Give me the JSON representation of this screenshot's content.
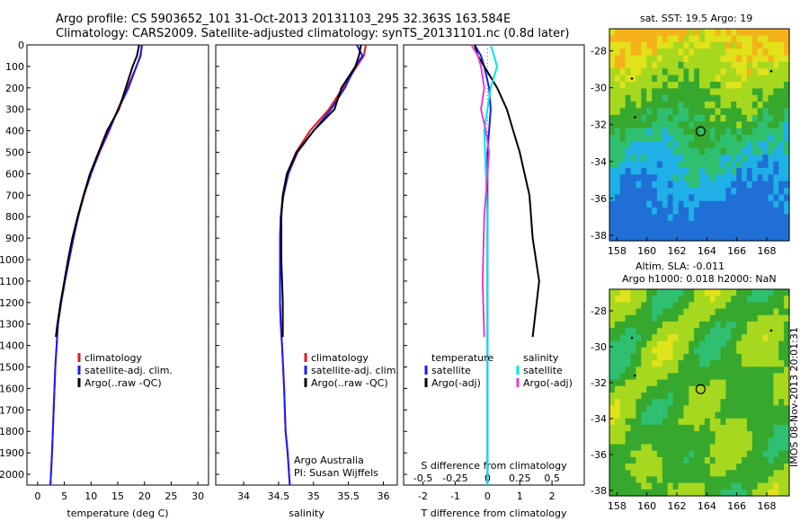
{
  "header": {
    "line1": "Argo profile: CS 5903652_101 31-Oct-2013 20131103_295 32.363S 163.584E",
    "line2": "Climatology: CARS2009. Satellite-adjusted climatology: synTS_20131101.nc (0.8d later)"
  },
  "map_top": {
    "title": "sat. SST: 19.5 Argo: 19"
  },
  "map_bottom": {
    "title_line1": "Altim. SLA: -0.011",
    "title_line2": "Argo h1000: 0.018 h2000: NaN"
  },
  "credits": {
    "vertical": "IMOS 08-Nov-2013 20:01:31",
    "institution": "Argo Australia",
    "pi": "PI: Susan Wijffels"
  },
  "colors": {
    "climatology": "#e41a1c",
    "satellite": "#1a1aff",
    "argo": "#000000",
    "s_satellite": "#00e5e5",
    "s_argo": "#e040d0"
  },
  "chart_data": [
    {
      "type": "line",
      "xlabel": "temperature (deg C)",
      "ylabel": "",
      "xlim": [
        -2,
        32
      ],
      "ylim": [
        2050,
        0
      ],
      "xticks": [
        "0",
        "5",
        "10",
        "15",
        "20",
        "25",
        "30"
      ],
      "yticks": [
        "0",
        "100",
        "200",
        "300",
        "400",
        "500",
        "600",
        "700",
        "800",
        "900",
        "1000",
        "1100",
        "1200",
        "1300",
        "1400",
        "1500",
        "1600",
        "1700",
        "1800",
        "1900",
        "2000"
      ],
      "legend": [
        "climatology",
        "satellite-adj. clim.",
        "Argo(..raw -QC)"
      ],
      "legend_position": "lower-center",
      "series": [
        {
          "name": "climatology",
          "x": [
            19.6,
            19.2,
            18.5,
            16.8,
            15,
            13.4,
            11.6,
            10,
            8.7,
            7.6,
            6.7,
            5.9,
            5.1,
            4.4,
            3.8,
            3.3,
            3.0,
            2.7,
            2.5,
            2.4
          ],
          "y": [
            0,
            50,
            100,
            200,
            300,
            400,
            500,
            600,
            700,
            800,
            900,
            1000,
            1100,
            1200,
            1300,
            1500,
            1700,
            1900,
            2000,
            2050
          ]
        },
        {
          "name": "satellite-adj. clim.",
          "x": [
            19.5,
            19.3,
            18.5,
            17,
            15.1,
            13.3,
            11.5,
            10,
            8.6,
            7.6,
            6.7,
            5.9,
            5.1,
            4.4,
            3.8,
            3.3,
            3.0,
            2.7,
            2.5,
            2.4
          ],
          "y": [
            0,
            50,
            100,
            200,
            300,
            400,
            500,
            600,
            700,
            800,
            900,
            1000,
            1100,
            1200,
            1300,
            1500,
            1700,
            1900,
            2000,
            2050
          ]
        },
        {
          "name": "Argo(..raw -QC)",
          "x": [
            19,
            18.6,
            17.8,
            16.5,
            15.2,
            13,
            11.4,
            9.8,
            8.6,
            7.5,
            6.5,
            5.7,
            5.0,
            4.3,
            3.7,
            3.4
          ],
          "y": [
            0,
            50,
            100,
            200,
            300,
            400,
            500,
            600,
            700,
            800,
            900,
            1000,
            1100,
            1200,
            1300,
            1360
          ]
        }
      ]
    },
    {
      "type": "line",
      "xlabel": "salinity",
      "xlim": [
        33.6,
        36.2
      ],
      "ylim": [
        2050,
        0
      ],
      "xticks": [
        "34",
        "34.5",
        "35",
        "35.5",
        "36"
      ],
      "legend": [
        "climatology",
        "satellite-adj. clim.",
        "Argo(..raw -QC)"
      ],
      "legend_position": "lower-right",
      "series": [
        {
          "name": "climatology",
          "x": [
            35.75,
            35.72,
            35.62,
            35.42,
            35.22,
            34.95,
            34.75,
            34.62,
            34.56,
            34.53,
            34.52,
            34.52,
            34.52,
            34.52,
            34.53,
            34.55,
            34.58,
            34.6,
            34.63,
            34.65,
            34.66
          ],
          "y": [
            0,
            50,
            100,
            200,
            300,
            400,
            500,
            600,
            700,
            800,
            900,
            1000,
            1100,
            1200,
            1300,
            1400,
            1600,
            1800,
            1900,
            2000,
            2050
          ]
        },
        {
          "name": "satellite-adj. clim.",
          "x": [
            35.62,
            35.7,
            35.6,
            35.45,
            35.25,
            35,
            34.77,
            34.64,
            34.57,
            34.53,
            34.52,
            34.52,
            34.52,
            34.52,
            34.53,
            34.55,
            34.58,
            34.6,
            34.63,
            34.65,
            34.66
          ],
          "y": [
            0,
            50,
            100,
            200,
            300,
            400,
            500,
            600,
            700,
            800,
            900,
            1000,
            1100,
            1200,
            1300,
            1400,
            1600,
            1800,
            1900,
            2000,
            2050
          ]
        },
        {
          "name": "Argo(..raw -QC)",
          "x": [
            35.68,
            35.65,
            35.6,
            35.4,
            35.3,
            35.0,
            34.76,
            34.62,
            34.56,
            34.54,
            34.54,
            34.54,
            34.55,
            34.56,
            34.56
          ],
          "y": [
            0,
            50,
            100,
            200,
            300,
            400,
            500,
            600,
            700,
            800,
            900,
            1000,
            1100,
            1200,
            1360
          ]
        }
      ]
    },
    {
      "type": "line",
      "xlabel": "T difference from climatology",
      "xlabel_top": "S difference from climatology",
      "xlim": [
        -2.6,
        3.0
      ],
      "ylim": [
        2050,
        0
      ],
      "xticks": [
        "-2",
        "-1",
        "0",
        "1",
        "2"
      ],
      "xticks_top": [
        "-0.5",
        "-0.25",
        "0",
        "0.25",
        "0.5"
      ],
      "legend_titles": [
        "temperature",
        "salinity"
      ],
      "legend": [
        "satellite",
        "Argo(-adj)",
        "satellite",
        "Argo(-adj)"
      ],
      "legend_position": "lower-center",
      "series": [
        {
          "name": "satellite",
          "x": [
            -0.4,
            -0.2,
            -0.1,
            0.05,
            0.1,
            0.05,
            0,
            0,
            0,
            0,
            0,
            0,
            0,
            0,
            0
          ],
          "y": [
            0,
            50,
            100,
            200,
            300,
            400,
            500,
            700,
            900,
            1100,
            1300,
            1500,
            1700,
            1900,
            2050
          ]
        },
        {
          "name": "Argo(-adj)",
          "x": [
            -0.4,
            -0.3,
            -0.1,
            0.3,
            0.6,
            0.8,
            1.0,
            1.3,
            1.4,
            1.6,
            1.4
          ],
          "y": [
            0,
            50,
            100,
            200,
            300,
            400,
            500,
            700,
            900,
            1100,
            1360
          ]
        },
        {
          "name": "satellite",
          "x": [
            0.1,
            0.2,
            0.3,
            0.1,
            0,
            -0.1,
            -0.05,
            0,
            0,
            0,
            0,
            0
          ],
          "y": [
            0,
            50,
            100,
            200,
            300,
            400,
            600,
            800,
            1100,
            1400,
            1800,
            2050
          ]
        },
        {
          "name": "Argo(-adj)",
          "x": [
            -0.5,
            -0.3,
            -0.2,
            -0.1,
            -0.2,
            -0.05,
            0.05,
            -0.1,
            -0.15,
            -0.1
          ],
          "y": [
            0,
            50,
            100,
            200,
            300,
            400,
            500,
            800,
            1100,
            1360
          ]
        }
      ]
    },
    {
      "type": "heatmap",
      "title": "sat. SST: 19.5 Argo: 19",
      "xlim": [
        157.5,
        169.5
      ],
      "ylim": [
        -38.3,
        -26.8
      ],
      "xticks": [
        "158",
        "160",
        "162",
        "164",
        "166",
        "168"
      ],
      "yticks": [
        "-28",
        "-30",
        "-32",
        "-34",
        "-36",
        "-38"
      ],
      "marker": {
        "x": 163.584,
        "y": -32.363
      }
    },
    {
      "type": "heatmap",
      "title": "Altim. SLA: -0.011",
      "xlim": [
        157.5,
        169.5
      ],
      "ylim": [
        -38.3,
        -26.8
      ],
      "xticks": [
        "158",
        "160",
        "162",
        "164",
        "166",
        "168"
      ],
      "yticks": [
        "-28",
        "-30",
        "-32",
        "-34",
        "-36",
        "-38"
      ],
      "marker": {
        "x": 163.584,
        "y": -32.363
      }
    }
  ]
}
